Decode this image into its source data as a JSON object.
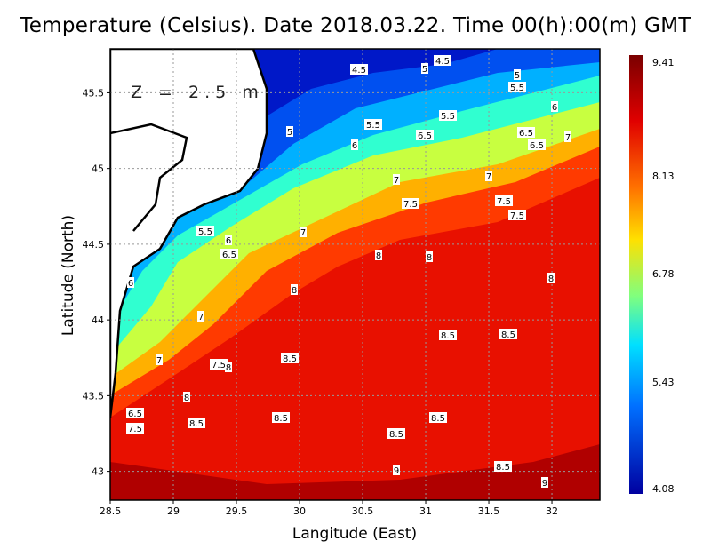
{
  "title": "Temperature (Celsius). Date 2018.03.22. Time 00(h):00(m)  GMT",
  "depth_label": "Z = 2.5 m",
  "chart_data": {
    "type": "heatmap",
    "variable": "Temperature (Celsius)",
    "xlabel": "Langitude (East)",
    "ylabel": "Latitude (North)",
    "xlim": [
      28.5,
      32.38
    ],
    "ylim": [
      42.81,
      45.79
    ],
    "x_ticks": [
      "28.5",
      "29",
      "29.5",
      "30",
      "30.5",
      "31",
      "31.5",
      "32"
    ],
    "y_ticks": [
      "43",
      "43.5",
      "44",
      "44.5",
      "45",
      "45.5"
    ],
    "grid": true,
    "colorbar": {
      "min": 4.08,
      "max": 9.41,
      "labels": [
        "9.41",
        "8.13",
        "6.78",
        "5.43",
        "4.08"
      ]
    },
    "contour_labels": [
      "4.5",
      "5",
      "4.5",
      "5",
      "5.5",
      "6",
      "5.5",
      "5.5",
      "5",
      "6.5",
      "6.5",
      "6.5",
      "7",
      "6",
      "7",
      "7",
      "7.5",
      "7.5",
      "7.5",
      "5.5",
      "6",
      "7",
      "6.5",
      "8",
      "8",
      "8",
      "6",
      "8",
      "7",
      "8.5",
      "8.5",
      "7",
      "8.5",
      "7.5",
      "8",
      "8",
      "6.5",
      "8.5",
      "8.5",
      "7.5",
      "8.5",
      "8.5",
      "8.5",
      "9",
      "9"
    ]
  },
  "colors": {
    "land": "#ffffff",
    "coast": "#000000"
  }
}
